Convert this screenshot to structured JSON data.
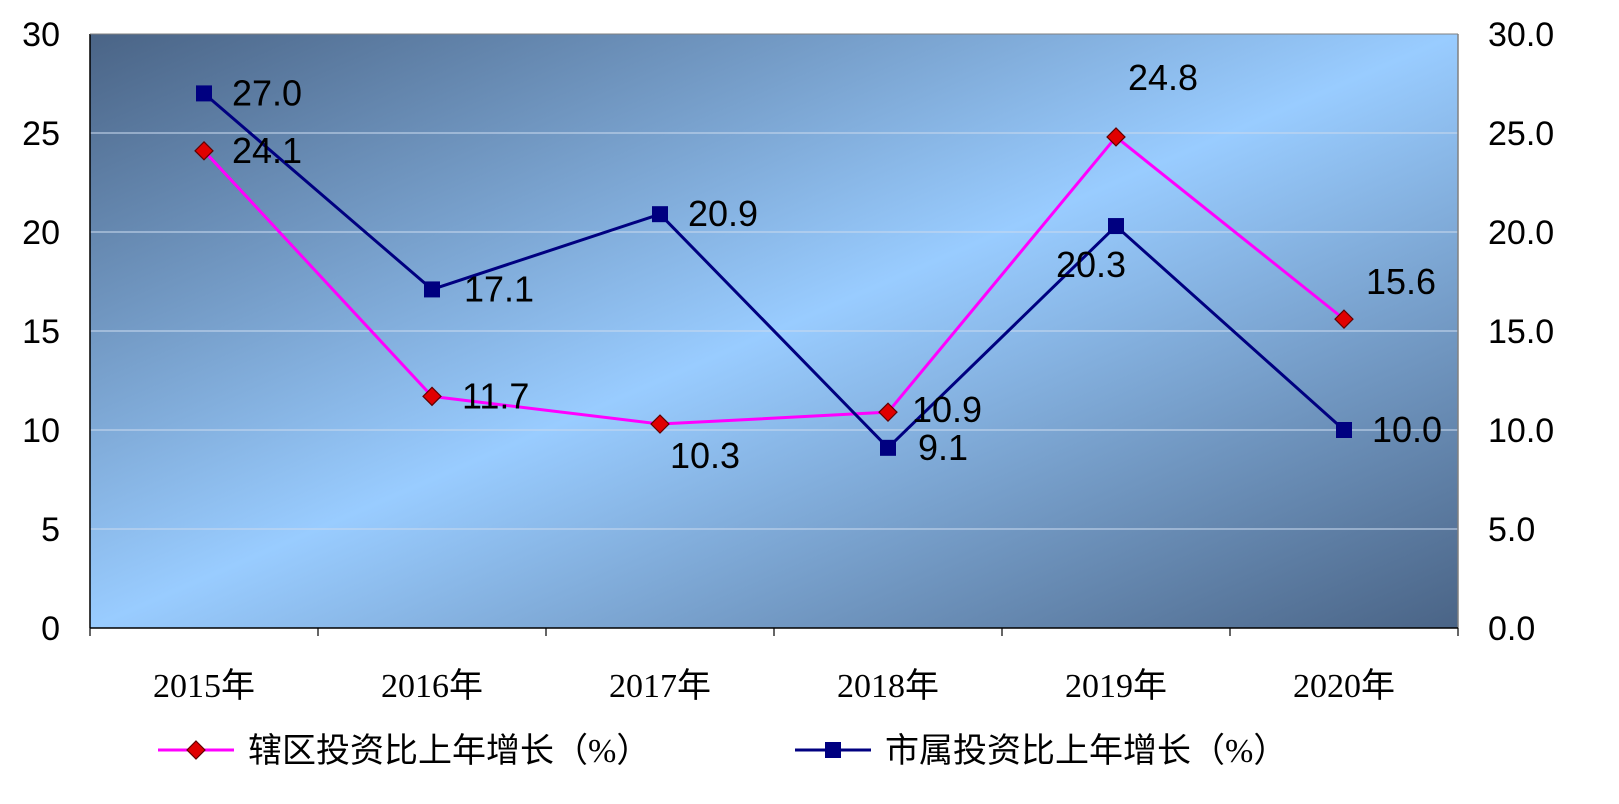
{
  "chart_data": {
    "type": "line",
    "categories": [
      "2015年",
      "2016年",
      "2017年",
      "2018年",
      "2019年",
      "2020年"
    ],
    "series": [
      {
        "name": "辖区投资比上年增长（%）",
        "values": [
          24.1,
          11.7,
          10.3,
          10.9,
          24.8,
          15.6
        ],
        "labels": [
          "24.1",
          "11.7",
          "10.3",
          "10.9",
          "24.8",
          "15.6"
        ],
        "color": "#ff00ff",
        "marker": "diamond",
        "marker_color": "#e00000"
      },
      {
        "name": "市属投资比上年增长（%）",
        "values": [
          27.0,
          17.1,
          20.9,
          9.1,
          20.3,
          10.0
        ],
        "labels": [
          "27.0",
          "17.1",
          "20.9",
          "9.1",
          "20.3",
          "10.0"
        ],
        "color": "#000080",
        "marker": "square",
        "marker_color": "#000080"
      }
    ],
    "ylim": [
      0,
      30
    ],
    "y_ticks_left": [
      "0",
      "5",
      "10",
      "15",
      "20",
      "25",
      "30"
    ],
    "y_ticks_right": [
      "0.0",
      "5.0",
      "10.0",
      "15.0",
      "20.0",
      "25.0",
      "30.0"
    ],
    "grid": true,
    "legend_position": "bottom",
    "plot_background": [
      "#4a6486",
      "#99ccff",
      "#4a6486"
    ]
  }
}
